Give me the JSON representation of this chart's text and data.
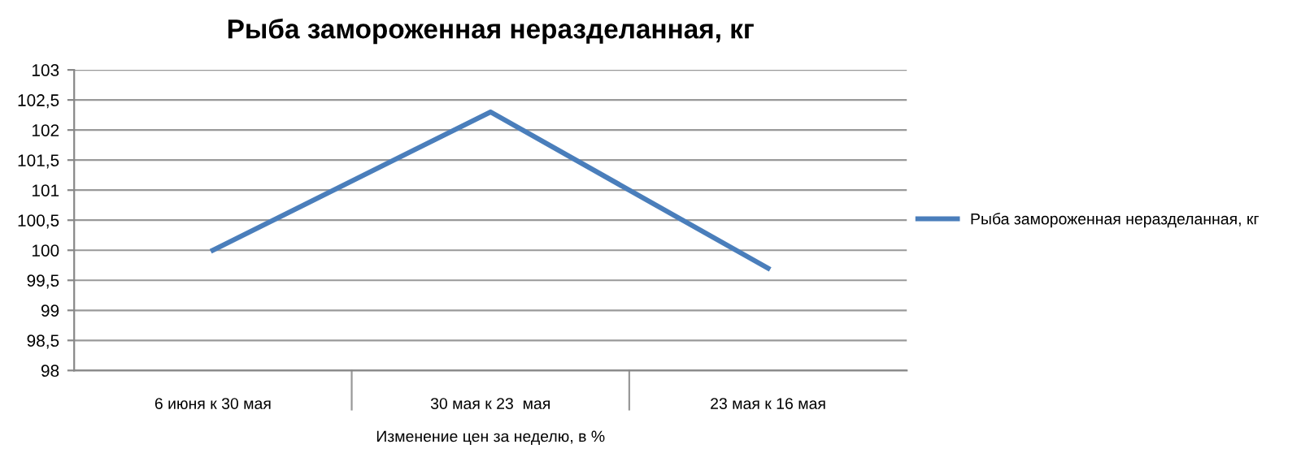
{
  "chart_data": {
    "type": "line",
    "title": "Рыба замороженная неразделанная, кг",
    "xlabel": "Изменение цен за неделю, в %",
    "categories": [
      "6 июня к 30 мая",
      "30 мая к 23  мая",
      "23 мая к 16 мая"
    ],
    "series": [
      {
        "name": "Рыба замороженная неразделанная, кг",
        "color": "#4a7ebb",
        "values": [
          100,
          102.3,
          99.7
        ]
      }
    ],
    "ylim": [
      98,
      103
    ],
    "yticks": [
      98,
      {
        "value": 98.5,
        "label": "98,5"
      },
      99,
      {
        "value": 99.5,
        "label": "99,5"
      },
      100,
      {
        "value": 100.5,
        "label": "100,5"
      },
      101,
      {
        "value": 101.5,
        "label": "101,5"
      },
      102,
      {
        "value": 102.5,
        "label": "102,5"
      },
      103
    ],
    "grid": "y",
    "legend": "right",
    "marker": "none",
    "line_style": "solid"
  }
}
